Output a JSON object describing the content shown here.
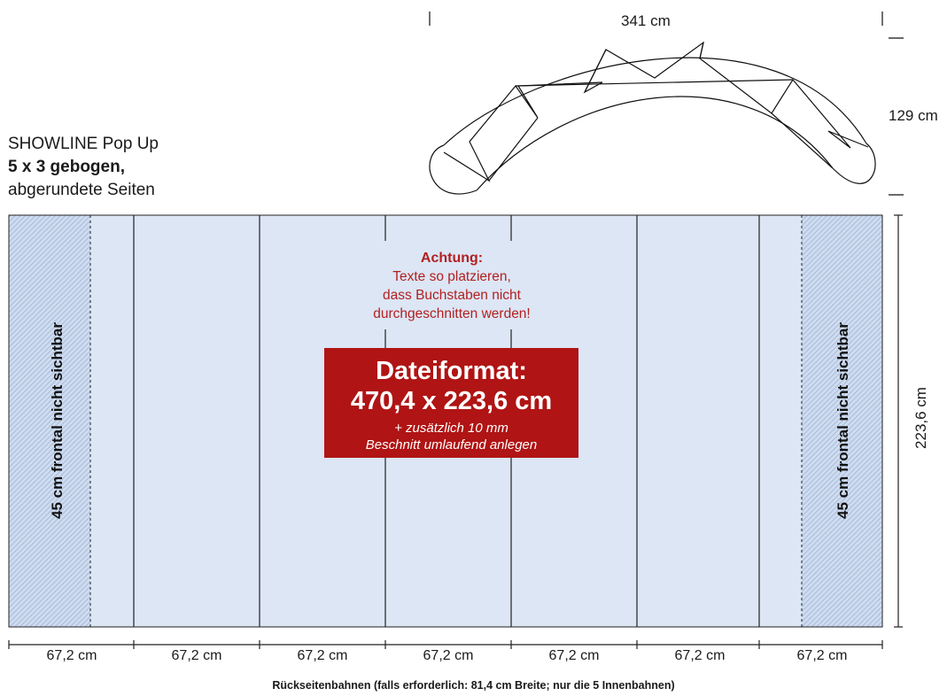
{
  "title": {
    "line1": "SHOWLINE Pop Up",
    "line2": "5 x 3 gebogen,",
    "line3": "abgerundete Seiten"
  },
  "top_view": {
    "width_label": "341 cm",
    "depth_label": "129 cm"
  },
  "height_label": "223,6 cm",
  "side_zone_label": "45 cm frontal nicht sichtbar",
  "warning": {
    "heading": "Achtung:",
    "line1": "Texte so platzieren,",
    "line2": "dass Buchstaben nicht",
    "line3": "durchgeschnitten werden!"
  },
  "file_format": {
    "heading": "Dateiformat:",
    "size": "470,4 x 223,6 cm",
    "note1": "+ zusätzlich 10 mm",
    "note2": "Beschnitt umlaufend anlegen"
  },
  "panel_widths": [
    "67,2 cm",
    "67,2 cm",
    "67,2 cm",
    "67,2 cm",
    "67,2 cm",
    "67,2 cm",
    "67,2 cm"
  ],
  "footer_note": "Rückseitenbahnen (falls erforderlich: 81,4 cm Breite; nur die 5 Innenbahnen)",
  "colors": {
    "panel_fill": "#dce6f5",
    "hatch": "#9fb2d6",
    "warning_text": "#b32020",
    "format_box": "#b01414"
  }
}
